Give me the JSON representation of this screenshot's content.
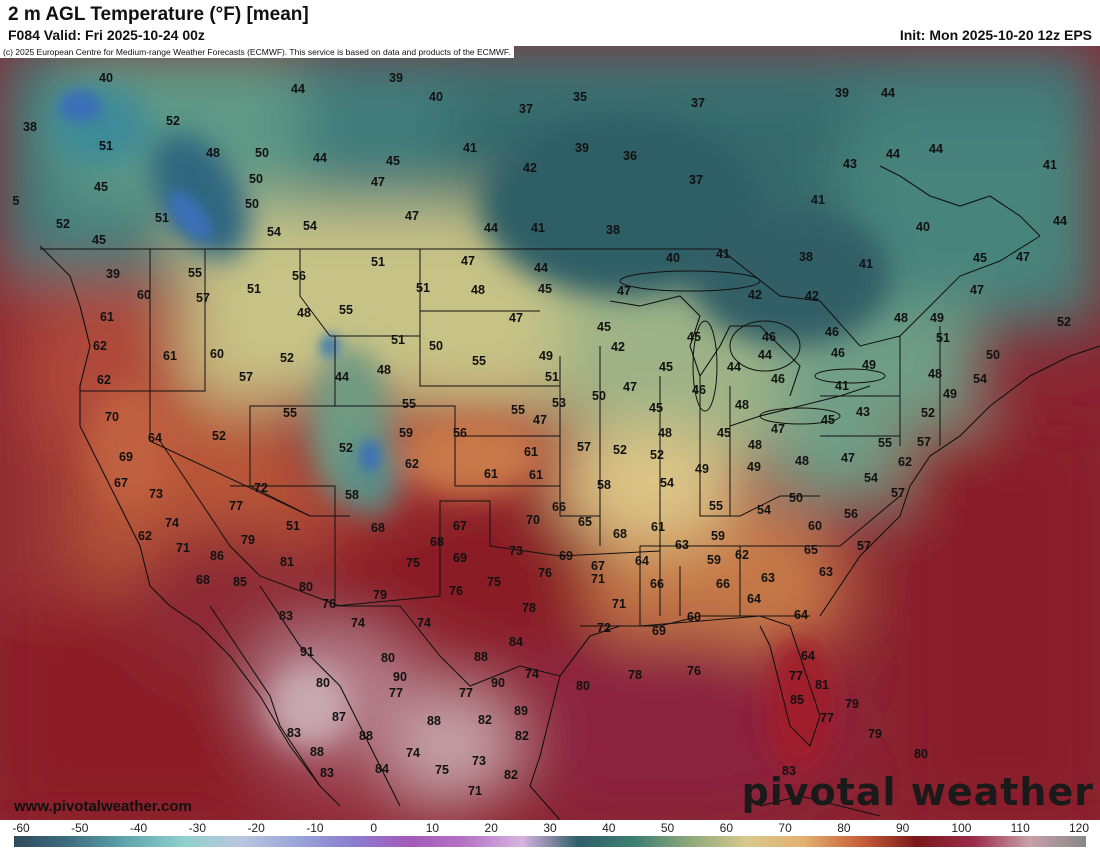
{
  "header": {
    "title": "2 m AGL Temperature (°F) [mean]",
    "valid": "F084 Valid: Fri 2025-10-24 00z",
    "init": "Init: Mon 2025-10-20 12z EPS"
  },
  "copyright": "(c) 2025 European Centre for Medium-range Weather Forecasts (ECMWF). This service is based on data and products of the ECMWF.",
  "footer": {
    "website": "www.pivotalweather.com",
    "logo_text": "pivotal weather"
  },
  "legend": {
    "unit": "°F",
    "ticks": [
      "-60",
      "-50",
      "-40",
      "-30",
      "-20",
      "-10",
      "0",
      "10",
      "20",
      "30",
      "40",
      "50",
      "60",
      "70",
      "80",
      "90",
      "100",
      "110",
      "120"
    ],
    "colors": [
      "#2e4a5c",
      "#3f6f80",
      "#5fa6ae",
      "#8fd0cd",
      "#b9c7de",
      "#9aa6d8",
      "#8a7ed0",
      "#a35ab8",
      "#b574c5",
      "#d9b4e0",
      "#2f5f6a",
      "#3f7f72",
      "#8fa97a",
      "#d9c98d",
      "#e2b070",
      "#c8603a",
      "#7a1818",
      "#9b2a4a",
      "#c8a0a8",
      "#888888"
    ]
  },
  "map_labels": [
    {
      "t": "40"
    },
    {
      "t": "44"
    },
    {
      "t": "39"
    },
    {
      "t": "40"
    },
    {
      "t": "35"
    },
    {
      "t": "37"
    },
    {
      "t": "37"
    },
    {
      "t": "39"
    },
    {
      "t": "44"
    },
    {
      "t": "38"
    },
    {
      "t": "52"
    },
    {
      "t": "51"
    },
    {
      "t": "48"
    },
    {
      "t": "50"
    },
    {
      "t": "44"
    },
    {
      "t": "45"
    },
    {
      "t": "41"
    },
    {
      "t": "39"
    },
    {
      "t": "36"
    },
    {
      "t": "43"
    },
    {
      "t": "44"
    },
    {
      "t": "44"
    },
    {
      "t": "41"
    },
    {
      "t": "45"
    },
    {
      "t": "50"
    },
    {
      "t": "47"
    },
    {
      "t": "42"
    },
    {
      "t": "37"
    },
    {
      "t": "41"
    },
    {
      "t": "5"
    },
    {
      "t": "51"
    },
    {
      "t": "50"
    },
    {
      "t": "47"
    },
    {
      "t": "44"
    },
    {
      "t": "41"
    },
    {
      "t": "38"
    },
    {
      "t": "40"
    },
    {
      "t": "44"
    },
    {
      "t": "52"
    },
    {
      "t": "45"
    },
    {
      "t": "54"
    },
    {
      "t": "54"
    },
    {
      "t": "39"
    },
    {
      "t": "55"
    },
    {
      "t": "56"
    },
    {
      "t": "51"
    },
    {
      "t": "47"
    },
    {
      "t": "44"
    },
    {
      "t": "40"
    },
    {
      "t": "41"
    },
    {
      "t": "38"
    },
    {
      "t": "41"
    },
    {
      "t": "45"
    },
    {
      "t": "47"
    },
    {
      "t": "60"
    },
    {
      "t": "57"
    },
    {
      "t": "51"
    },
    {
      "t": "51"
    },
    {
      "t": "48"
    },
    {
      "t": "45"
    },
    {
      "t": "47"
    },
    {
      "t": "42"
    },
    {
      "t": "42"
    },
    {
      "t": "47"
    },
    {
      "t": "61"
    },
    {
      "t": "48"
    },
    {
      "t": "55"
    },
    {
      "t": "47"
    },
    {
      "t": "45"
    },
    {
      "t": "46"
    },
    {
      "t": "48"
    },
    {
      "t": "49"
    },
    {
      "t": "52"
    },
    {
      "t": "62"
    },
    {
      "t": "61"
    },
    {
      "t": "60"
    },
    {
      "t": "52"
    },
    {
      "t": "51"
    },
    {
      "t": "50"
    },
    {
      "t": "42"
    },
    {
      "t": "45"
    },
    {
      "t": "46"
    },
    {
      "t": "46"
    },
    {
      "t": "51"
    },
    {
      "t": "50"
    },
    {
      "t": "62"
    },
    {
      "t": "57"
    },
    {
      "t": "44"
    },
    {
      "t": "48"
    },
    {
      "t": "55"
    },
    {
      "t": "49"
    },
    {
      "t": "45"
    },
    {
      "t": "44"
    },
    {
      "t": "44"
    },
    {
      "t": "49"
    },
    {
      "t": "48"
    },
    {
      "t": "51"
    },
    {
      "t": "47"
    },
    {
      "t": "46"
    },
    {
      "t": "46"
    },
    {
      "t": "41"
    },
    {
      "t": "54"
    },
    {
      "t": "70"
    },
    {
      "t": "55"
    },
    {
      "t": "55"
    },
    {
      "t": "55"
    },
    {
      "t": "53"
    },
    {
      "t": "50"
    },
    {
      "t": "45"
    },
    {
      "t": "48"
    },
    {
      "t": "43"
    },
    {
      "t": "45"
    },
    {
      "t": "49"
    },
    {
      "t": "64"
    },
    {
      "t": "52"
    },
    {
      "t": "59"
    },
    {
      "t": "56"
    },
    {
      "t": "47"
    },
    {
      "t": "48"
    },
    {
      "t": "45"
    },
    {
      "t": "47"
    },
    {
      "t": "52"
    },
    {
      "t": "69"
    },
    {
      "t": "52"
    },
    {
      "t": "62"
    },
    {
      "t": "61"
    },
    {
      "t": "57"
    },
    {
      "t": "52"
    },
    {
      "t": "48"
    },
    {
      "t": "48"
    },
    {
      "t": "55"
    },
    {
      "t": "57"
    },
    {
      "t": "67"
    },
    {
      "t": "61"
    },
    {
      "t": "61"
    },
    {
      "t": "52"
    },
    {
      "t": "49"
    },
    {
      "t": "49"
    },
    {
      "t": "47"
    },
    {
      "t": "62"
    },
    {
      "t": "73"
    },
    {
      "t": "72"
    },
    {
      "t": "58"
    },
    {
      "t": "58"
    },
    {
      "t": "54"
    },
    {
      "t": "50"
    },
    {
      "t": "54"
    },
    {
      "t": "74"
    },
    {
      "t": "77"
    },
    {
      "t": "51"
    },
    {
      "t": "66"
    },
    {
      "t": "55"
    },
    {
      "t": "54"
    },
    {
      "t": "56"
    },
    {
      "t": "57"
    },
    {
      "t": "62"
    },
    {
      "t": "79"
    },
    {
      "t": "68"
    },
    {
      "t": "67"
    },
    {
      "t": "70"
    },
    {
      "t": "65"
    },
    {
      "t": "61"
    },
    {
      "t": "59"
    },
    {
      "t": "60"
    },
    {
      "t": "71"
    },
    {
      "t": "86"
    },
    {
      "t": "68"
    },
    {
      "t": "73"
    },
    {
      "t": "69"
    },
    {
      "t": "68"
    },
    {
      "t": "63"
    },
    {
      "t": "62"
    },
    {
      "t": "65"
    },
    {
      "t": "57"
    },
    {
      "t": "81"
    },
    {
      "t": "75"
    },
    {
      "t": "69"
    },
    {
      "t": "76"
    },
    {
      "t": "67"
    },
    {
      "t": "64"
    },
    {
      "t": "59"
    },
    {
      "t": "68"
    },
    {
      "t": "85"
    },
    {
      "t": "80"
    },
    {
      "t": "75"
    },
    {
      "t": "76"
    },
    {
      "t": "71"
    },
    {
      "t": "66"
    },
    {
      "t": "66"
    },
    {
      "t": "63"
    },
    {
      "t": "63"
    },
    {
      "t": "76"
    },
    {
      "t": "79"
    },
    {
      "t": "74"
    },
    {
      "t": "71"
    },
    {
      "t": "64"
    },
    {
      "t": "83"
    },
    {
      "t": "78"
    },
    {
      "t": "60"
    },
    {
      "t": "64"
    },
    {
      "t": "74"
    },
    {
      "t": "80"
    },
    {
      "t": "77"
    },
    {
      "t": "72"
    },
    {
      "t": "69"
    },
    {
      "t": "91"
    },
    {
      "t": "84"
    },
    {
      "t": "64"
    },
    {
      "t": "80"
    },
    {
      "t": "88"
    },
    {
      "t": "90"
    },
    {
      "t": "74"
    },
    {
      "t": "80"
    },
    {
      "t": "78"
    },
    {
      "t": "76"
    },
    {
      "t": "77"
    },
    {
      "t": "90"
    },
    {
      "t": "77"
    },
    {
      "t": "89"
    },
    {
      "t": "85"
    },
    {
      "t": "81"
    },
    {
      "t": "79"
    },
    {
      "t": "87"
    },
    {
      "t": "88"
    },
    {
      "t": "82"
    },
    {
      "t": "77"
    },
    {
      "t": "83"
    },
    {
      "t": "88"
    },
    {
      "t": "82"
    },
    {
      "t": "79"
    },
    {
      "t": "88"
    },
    {
      "t": "74"
    },
    {
      "t": "73"
    },
    {
      "t": "80"
    },
    {
      "t": "83"
    },
    {
      "t": "84"
    },
    {
      "t": "75"
    },
    {
      "t": "82"
    },
    {
      "t": "83"
    },
    {
      "t": "71"
    }
  ]
}
